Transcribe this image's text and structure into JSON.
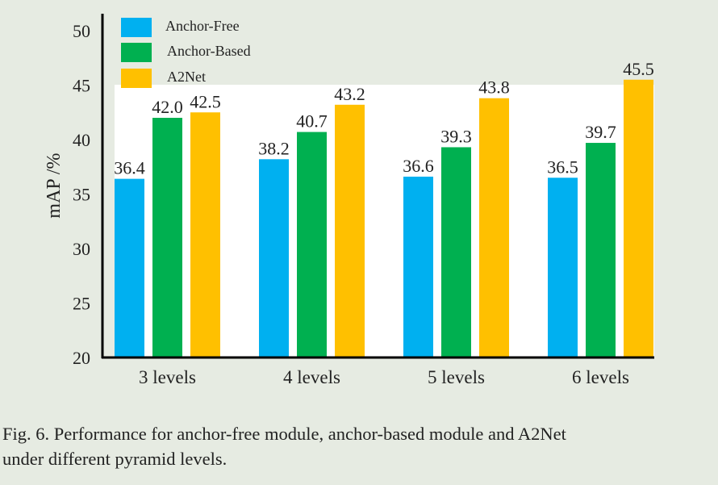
{
  "chart_data": {
    "type": "bar",
    "title": "",
    "xlabel": "",
    "ylabel": "mAP /%",
    "ylim": [
      20,
      50
    ],
    "yticks": [
      20,
      25,
      30,
      35,
      40,
      45,
      50
    ],
    "categories": [
      "3 levels",
      "4 levels",
      "5 levels",
      "6 levels"
    ],
    "series": [
      {
        "name": "Anchor-Free",
        "color": "#00b0f0",
        "values": [
          36.4,
          38.2,
          36.6,
          36.5
        ]
      },
      {
        "name": "Anchor-Based",
        "color": "#00b050",
        "values": [
          42.0,
          40.7,
          39.3,
          39.7
        ]
      },
      {
        "name": "A2Net",
        "color": "#ffc000",
        "values": [
          42.5,
          43.2,
          43.8,
          45.5
        ]
      }
    ],
    "data_labels": [
      [
        "36.4",
        "38.2",
        "36.6",
        "36.5"
      ],
      [
        "42.0",
        "40.7",
        "39.3",
        "39.7"
      ],
      [
        "42.5",
        "43.2",
        "43.8",
        "45.5"
      ]
    ],
    "legend_position": "top-left",
    "grid": false
  },
  "caption": {
    "line1": "Fig. 6.  Performance for anchor-free module, anchor-based module and A2Net",
    "line2": "under different pyramid levels."
  }
}
